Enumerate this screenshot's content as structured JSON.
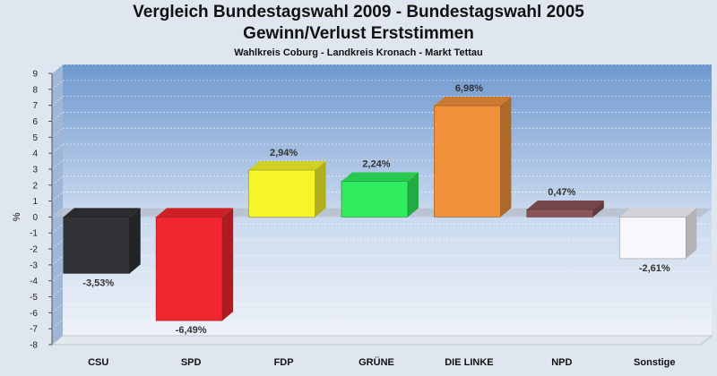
{
  "header": {
    "title_line1": "Vergleich Bundestagswahl 2009 - Bundestagswahl 2005",
    "title_line2": "Gewinn/Verlust Erststimmen",
    "subtitle": "Wahlkreis Coburg - Landkreis Kronach - Markt Tettau"
  },
  "chart_data": {
    "type": "bar",
    "title": "Vergleich Bundestagswahl 2009 - Bundestagswahl 2005 Gewinn/Verlust Erststimmen",
    "subtitle": "Wahlkreis Coburg - Landkreis Kronach - Markt Tettau",
    "xlabel": "",
    "ylabel": "%",
    "ylim": [
      -8,
      9
    ],
    "yticks": [
      9,
      8,
      7,
      6,
      5,
      4,
      3,
      2,
      1,
      0,
      -1,
      -2,
      -3,
      -4,
      -5,
      -6,
      -7,
      -8
    ],
    "grid": true,
    "categories": [
      "CSU",
      "SPD",
      "FDP",
      "GRÜNE",
      "DIE LINKE",
      "NPD",
      "Sonstige"
    ],
    "values": [
      -3.53,
      -6.49,
      2.94,
      2.24,
      6.98,
      0.47,
      -2.61
    ],
    "value_labels": [
      "-3,53%",
      "-6,49%",
      "2,94%",
      "2,24%",
      "6,98%",
      "0,47%",
      "-2,61%"
    ],
    "colors": [
      "#303236",
      "#f2262e",
      "#f5f52a",
      "#2fec5e",
      "#f0903a",
      "#8a5458",
      "#f8f8fc"
    ]
  }
}
